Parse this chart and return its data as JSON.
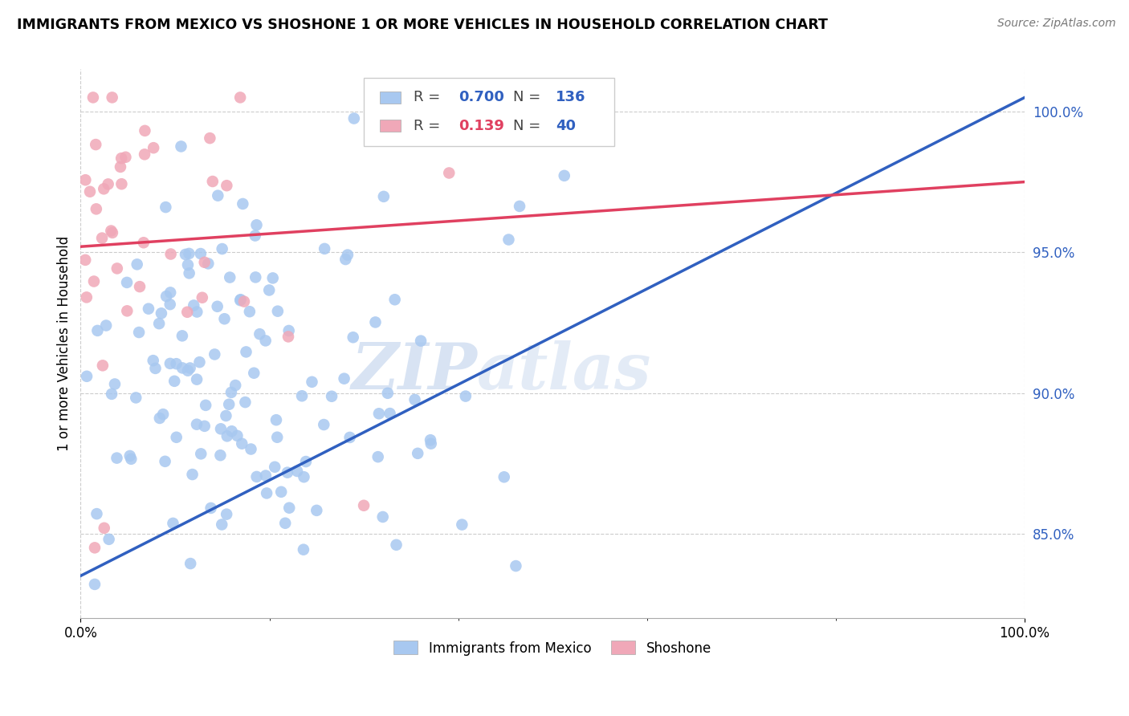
{
  "title": "IMMIGRANTS FROM MEXICO VS SHOSHONE 1 OR MORE VEHICLES IN HOUSEHOLD CORRELATION CHART",
  "source": "Source: ZipAtlas.com",
  "ylabel": "1 or more Vehicles in Household",
  "legend_blue_r": "0.700",
  "legend_blue_n": "136",
  "legend_pink_r": "0.139",
  "legend_pink_n": "40",
  "legend_label_blue": "Immigrants from Mexico",
  "legend_label_pink": "Shoshone",
  "blue_color": "#a8c8f0",
  "pink_color": "#f0a8b8",
  "trend_blue": "#3060c0",
  "trend_pink": "#e04060",
  "watermark_zip": "ZIP",
  "watermark_atlas": "atlas",
  "ymin": 82.0,
  "ymax": 101.5,
  "xmin": 0.0,
  "xmax": 100.0,
  "ytick_values": [
    85.0,
    90.0,
    95.0,
    100.0
  ],
  "blue_trend_start_y": 83.5,
  "blue_trend_end_y": 100.5,
  "pink_trend_start_y": 95.2,
  "pink_trend_end_y": 97.5
}
